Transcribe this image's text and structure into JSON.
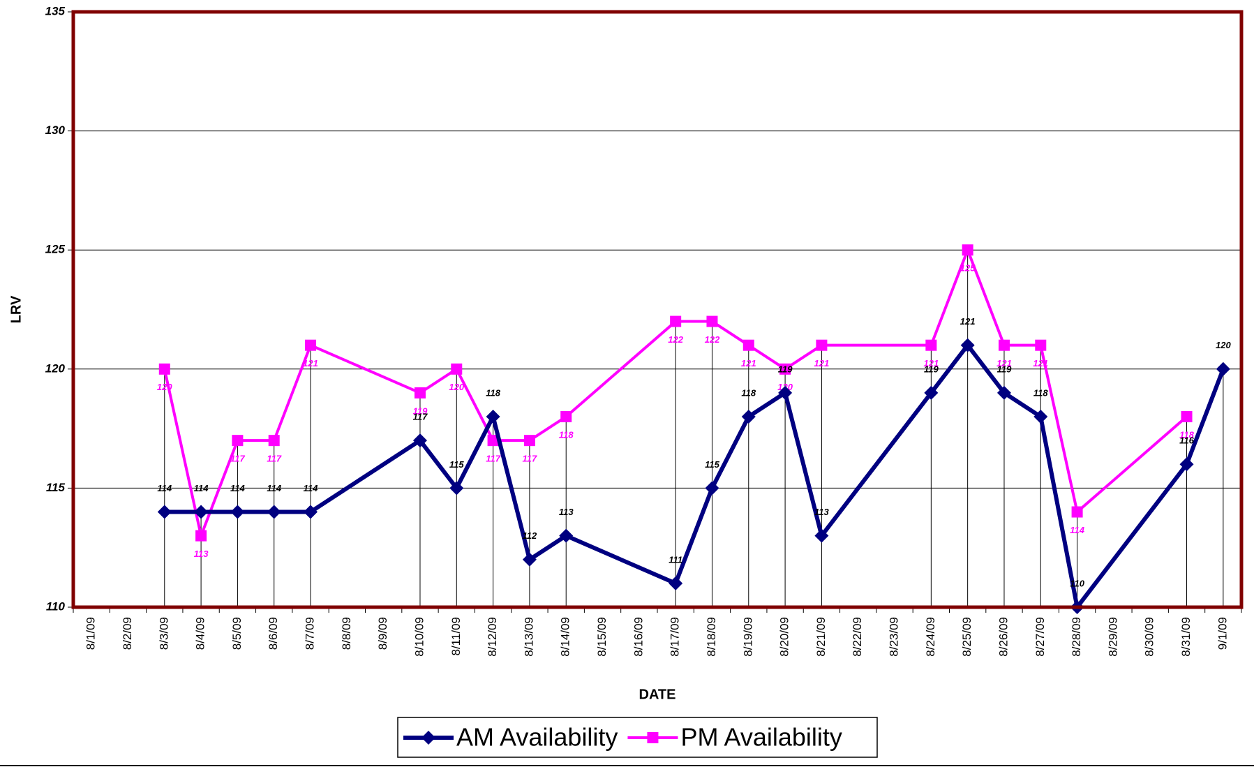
{
  "chart_data": {
    "type": "line",
    "y_label": "LRV",
    "x_label": "DATE",
    "categories": [
      "8/1/09",
      "8/2/09",
      "8/3/09",
      "8/4/09",
      "8/5/09",
      "8/6/09",
      "8/7/09",
      "8/8/09",
      "8/9/09",
      "8/10/09",
      "8/11/09",
      "8/12/09",
      "8/13/09",
      "8/14/09",
      "8/15/09",
      "8/16/09",
      "8/17/09",
      "8/18/09",
      "8/19/09",
      "8/20/09",
      "8/21/09",
      "8/22/09",
      "8/23/09",
      "8/24/09",
      "8/25/09",
      "8/26/09",
      "8/27/09",
      "8/28/09",
      "8/29/09",
      "8/30/09",
      "8/31/09",
      "9/1/09"
    ],
    "series": [
      {
        "name": "AM Availability",
        "color": "#000080",
        "marker": "diamond",
        "values": [
          null,
          null,
          114,
          114,
          114,
          114,
          114,
          null,
          null,
          117,
          115,
          118,
          112,
          113,
          null,
          null,
          111,
          115,
          118,
          119,
          113,
          null,
          null,
          119,
          121,
          119,
          118,
          110,
          null,
          null,
          116,
          120
        ]
      },
      {
        "name": "PM Availability",
        "color": "#ff00ff",
        "marker": "square",
        "values": [
          null,
          null,
          120,
          113,
          117,
          117,
          121,
          null,
          null,
          119,
          120,
          117,
          117,
          118,
          null,
          null,
          122,
          122,
          121,
          120,
          121,
          null,
          null,
          121,
          125,
          121,
          121,
          114,
          null,
          null,
          118,
          null
        ]
      }
    ],
    "ylim": [
      110,
      135
    ],
    "yticks": [
      110,
      115,
      120,
      125,
      130,
      135
    ],
    "grid": true,
    "span_gaps": true,
    "drop_lines": true,
    "legend": "bottom",
    "frame_color": "#800000"
  }
}
